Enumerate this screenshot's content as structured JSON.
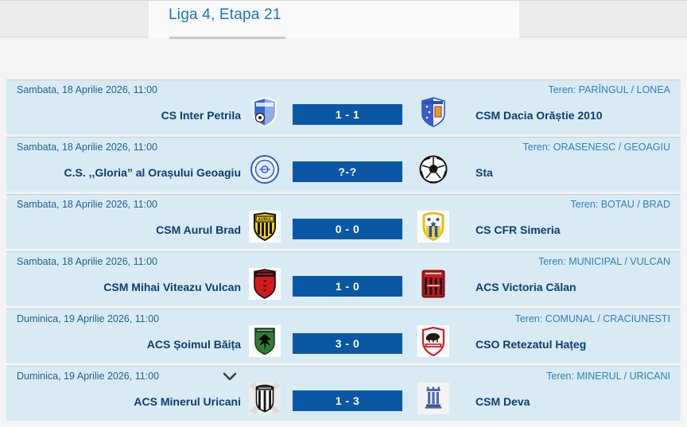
{
  "header": {
    "title": "Liga 4, Etapa 21"
  },
  "colors": {
    "accent_blue": "#1e73be",
    "row_background": "#d8ebf5",
    "score_box": "#0a57a4",
    "team_name": "#0b3e6f",
    "date_text": "#21618c",
    "venue_text": "#2d7fb8"
  },
  "matches": [
    {
      "date": "Sambata, 18 Aprilie 2026, 11:00",
      "venue": "Teren: PARÎNGUL / LONEA",
      "home": {
        "name": "CS Inter Petrila",
        "logo": "inter-petrila-crest"
      },
      "score": "1 - 1",
      "away": {
        "name": "CSM Dacia Orăștie 2010",
        "logo": "dacia-orastie-crest"
      },
      "expand_chevron": false
    },
    {
      "date": "Sambata, 18 Aprilie 2026, 11:00",
      "venue": "Teren: ORASENESC / GEOAGIU",
      "home": {
        "name": "C.S. ,,Gloria” al Orașului Geoagiu",
        "logo": "gloria-geoagiu-crest"
      },
      "score": "?-?",
      "away": {
        "name": "Sta",
        "logo": "soccer-ball"
      },
      "expand_chevron": false
    },
    {
      "date": "Sambata, 18 Aprilie 2026, 11:00",
      "venue": "Teren: BOTAU / BRAD",
      "home": {
        "name": "CSM Aurul Brad",
        "logo": "aurul-brad-crest"
      },
      "score": "0 - 0",
      "away": {
        "name": "CS CFR Simeria",
        "logo": "cfr-simeria-crest"
      },
      "expand_chevron": false
    },
    {
      "date": "Sambata, 18 Aprilie 2026, 11:00",
      "venue": "Teren: MUNICIPAL / VULCAN",
      "home": {
        "name": "CSM Mihai Viteazu Vulcan",
        "logo": "mihai-viteazu-crest"
      },
      "score": "1 - 0",
      "away": {
        "name": "ACS Victoria Călan",
        "logo": "victoria-calan-crest"
      },
      "expand_chevron": false
    },
    {
      "date": "Duminica, 19 Aprilie 2026, 11:00",
      "venue": "Teren: COMUNAL / CRACIUNESTI",
      "home": {
        "name": "ACS Șoimul Băița",
        "logo": "soimul-baita-crest"
      },
      "score": "3 - 0",
      "away": {
        "name": "CSO Retezatul Hațeg",
        "logo": "retezatul-hateg-crest"
      },
      "expand_chevron": false
    },
    {
      "date": "Duminica, 19 Aprilie 2026, 11:00",
      "venue": "Teren: MINERUL / URICANI",
      "home": {
        "name": "ACS Minerul Uricani",
        "logo": "minerul-uricani-crest"
      },
      "score": "1 - 3",
      "away": {
        "name": "CSM Deva",
        "logo": "csm-deva-crest"
      },
      "expand_chevron": true
    }
  ]
}
